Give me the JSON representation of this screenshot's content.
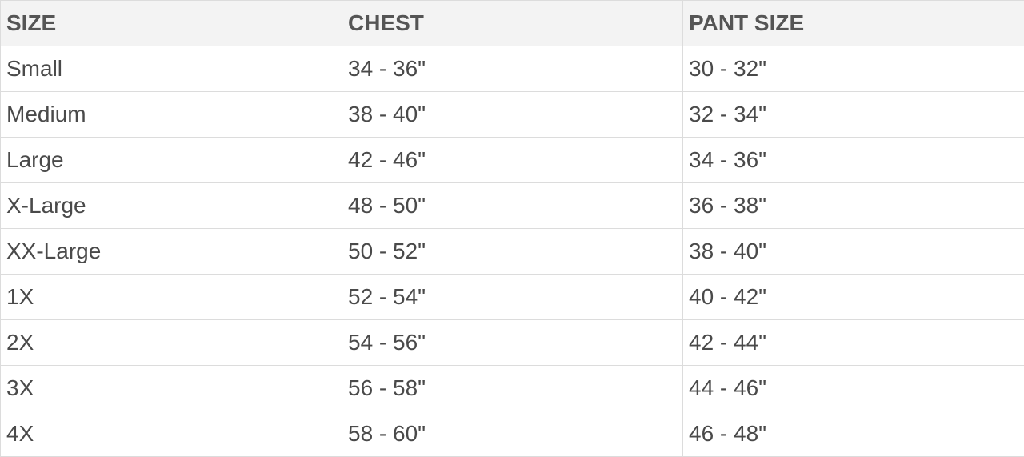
{
  "table": {
    "header": [
      "SIZE",
      "CHEST",
      "PANT SIZE"
    ],
    "rows": [
      [
        "Small",
        "34 - 36\"",
        "30 - 32\""
      ],
      [
        "Medium",
        "38 - 40\"",
        "32 - 34\""
      ],
      [
        "Large",
        "42 - 46\"",
        "34 - 36\""
      ],
      [
        "X-Large",
        "48 - 50\"",
        "36 - 38\""
      ],
      [
        "XX-Large",
        "50 - 52\"",
        "38 - 40\""
      ],
      [
        "1X",
        "52 - 54\"",
        "40 - 42\""
      ],
      [
        "2X",
        "54 - 56\"",
        "42 - 44\""
      ],
      [
        "3X",
        "56 - 58\"",
        "44 - 46\""
      ],
      [
        "4X",
        "58 - 60\"",
        "46 - 48\""
      ]
    ]
  }
}
